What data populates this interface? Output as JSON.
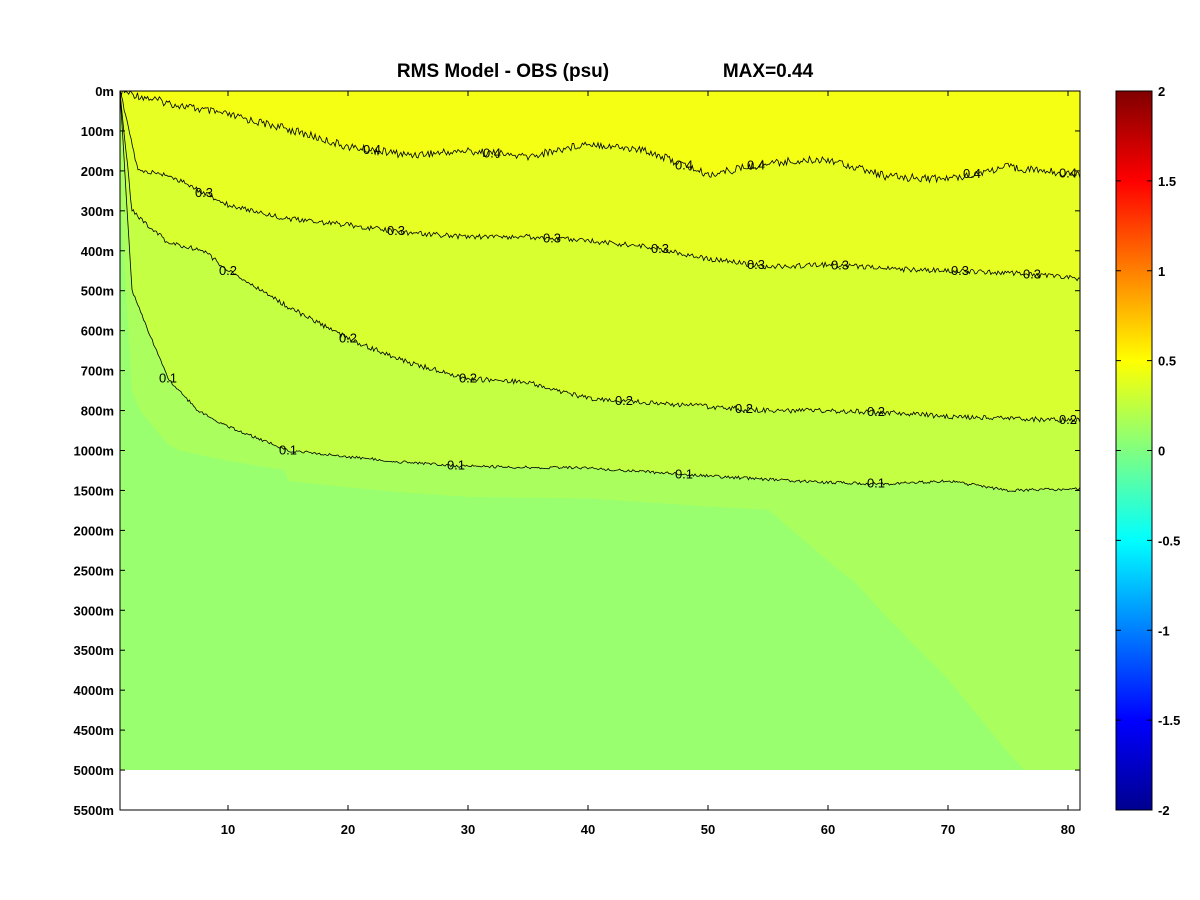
{
  "chart_data": {
    "type": "heatmap",
    "title": "RMS Model - OBS (psu)",
    "subtitle": "MAX=0.44",
    "x_ticks": [
      10,
      20,
      30,
      40,
      50,
      60,
      70,
      80
    ],
    "xlim": [
      1,
      81
    ],
    "y_ticks": [
      "0m",
      "100m",
      "200m",
      "300m",
      "400m",
      "500m",
      "600m",
      "700m",
      "800m",
      "1000m",
      "1500m",
      "2000m",
      "2500m",
      "3000m",
      "3500m",
      "4000m",
      "4500m",
      "5000m",
      "5500m"
    ],
    "colorbar": {
      "min": -2,
      "max": 2,
      "ticks": [
        "2",
        "1.5",
        "1",
        "0.5",
        "0",
        "-0.5",
        "-1",
        "-1.5",
        "-2"
      ],
      "colormap": "jet"
    },
    "contours": [
      {
        "level": 0.4,
        "label": "0.4",
        "x": [
          1,
          5,
          10,
          15,
          20,
          25,
          30,
          35,
          40,
          45,
          50,
          55,
          60,
          65,
          70,
          75,
          81
        ],
        "depth_m": [
          0,
          30,
          60,
          95,
          140,
          160,
          150,
          165,
          130,
          150,
          210,
          180,
          170,
          215,
          220,
          190,
          210
        ]
      },
      {
        "level": 0.3,
        "label": "0.3",
        "x": [
          1,
          2.5,
          5,
          10,
          15,
          20,
          25,
          30,
          35,
          40,
          45,
          50,
          55,
          60,
          65,
          70,
          75,
          81
        ],
        "depth_m": [
          0,
          200,
          210,
          285,
          320,
          335,
          355,
          365,
          365,
          375,
          390,
          420,
          440,
          435,
          445,
          450,
          455,
          470
        ]
      },
      {
        "level": 0.2,
        "label": "0.2",
        "x": [
          1,
          2,
          5,
          8,
          10,
          15,
          20,
          25,
          30,
          35,
          40,
          45,
          50,
          55,
          60,
          65,
          70,
          75,
          81
        ],
        "depth_m": [
          0,
          300,
          380,
          400,
          450,
          540,
          620,
          680,
          720,
          730,
          770,
          780,
          790,
          800,
          800,
          810,
          830,
          840,
          850
        ]
      },
      {
        "level": 0.1,
        "label": "0.1",
        "x": [
          1,
          2,
          5,
          10,
          15,
          20,
          25,
          30,
          40,
          50,
          60,
          65,
          70,
          75,
          81
        ],
        "depth_m": [
          0,
          500,
          720,
          880,
          1000,
          1080,
          1150,
          1200,
          1220,
          1320,
          1400,
          1420,
          1380,
          1500,
          1480
        ]
      }
    ],
    "regions": [
      {
        "description": "0.4-0.44 band",
        "color": "#f5ff14"
      },
      {
        "description": "0.3-0.4 band",
        "color": "#e7ff22"
      },
      {
        "description": "0.2-0.3 band",
        "color": "#d8ff30"
      },
      {
        "description": "0.1-0.2 band",
        "color": "#c4ff44"
      },
      {
        "description": "0.05-0.1 band",
        "color": "#aaff5e"
      },
      {
        "description": "<0.05 deep band",
        "color": "#99ff6e"
      }
    ]
  }
}
